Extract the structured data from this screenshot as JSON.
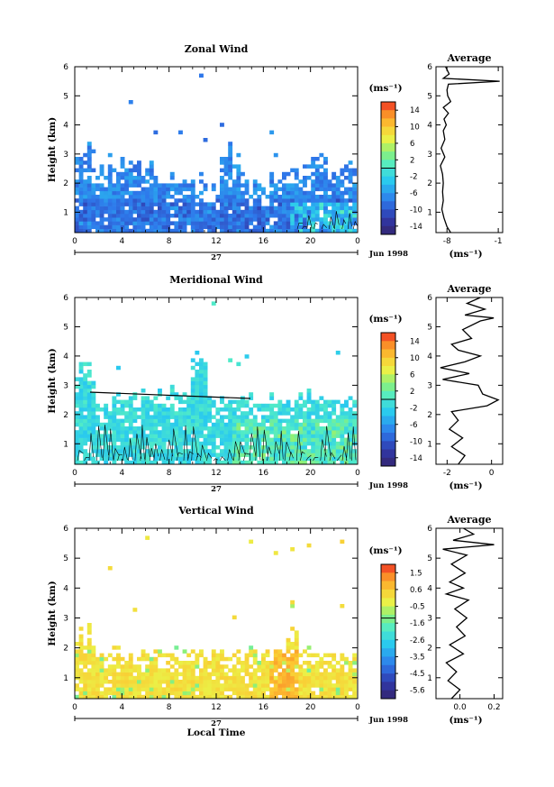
{
  "chart_data": [
    {
      "type": "heatmap",
      "title": "Zonal Wind",
      "xlabel": "",
      "ylabel": "Height (km)",
      "xticks": [
        "0",
        "4",
        "8",
        "12",
        "16",
        "20",
        "0"
      ],
      "xlim": [
        0,
        24
      ],
      "yticks": [
        "1",
        "2",
        "3",
        "4",
        "5",
        "6"
      ],
      "ylim": [
        0.3,
        6
      ],
      "date_day": "27",
      "date_label": "Jun 1998",
      "colorbar": {
        "unit": "(ms⁻¹)",
        "ticks": [
          "14",
          "10",
          "6",
          "2",
          "-2",
          "-6",
          "-10",
          "-14"
        ],
        "range": [
          -16,
          16
        ]
      },
      "average_profile": {
        "title": "Average",
        "xlabel": "(ms⁻¹)",
        "xticks": [
          "-8",
          "-1"
        ],
        "xlim": [
          -9.5,
          -0.4
        ],
        "points": [
          [
            -7.5,
            0.3
          ],
          [
            -8,
            0.5
          ],
          [
            -8.4,
            0.8
          ],
          [
            -8.7,
            1.1
          ],
          [
            -8.5,
            1.4
          ],
          [
            -8.6,
            1.7
          ],
          [
            -8.5,
            2
          ],
          [
            -8.6,
            2.3
          ],
          [
            -8.9,
            2.6
          ],
          [
            -8.3,
            2.9
          ],
          [
            -8.8,
            3.2
          ],
          [
            -8.3,
            3.5
          ],
          [
            -8.5,
            3.8
          ],
          [
            -8.1,
            4
          ],
          [
            -8.4,
            4.2
          ],
          [
            -7.8,
            4.4
          ],
          [
            -8.5,
            4.6
          ],
          [
            -7.5,
            4.8
          ],
          [
            -7.9,
            5
          ],
          [
            -8,
            5.2
          ],
          [
            -7.8,
            5.4
          ],
          [
            -0.8,
            5.5
          ],
          [
            -8.5,
            5.6
          ],
          [
            -7.7,
            5.75
          ],
          [
            -8.2,
            6
          ]
        ]
      }
    },
    {
      "type": "heatmap",
      "title": "Meridional Wind",
      "xlabel": "",
      "ylabel": "Height (km)",
      "xticks": [
        "0",
        "4",
        "8",
        "12",
        "16",
        "20",
        "0"
      ],
      "xlim": [
        0,
        24
      ],
      "yticks": [
        "1",
        "2",
        "3",
        "4",
        "5",
        "6"
      ],
      "ylim": [
        0.3,
        6
      ],
      "date_day": "27",
      "date_label": "Jun 1998",
      "colorbar": {
        "unit": "(ms⁻¹)",
        "ticks": [
          "14",
          "10",
          "6",
          "2",
          "-2",
          "-6",
          "-10",
          "-14"
        ],
        "range": [
          -16,
          16
        ]
      },
      "average_profile": {
        "title": "Average",
        "xlabel": "(ms⁻¹)",
        "xticks": [
          "-2",
          "0"
        ],
        "xlim": [
          -2.5,
          0.5
        ],
        "points": [
          [
            -1.5,
            0.3
          ],
          [
            -1.2,
            0.6
          ],
          [
            -1.8,
            0.9
          ],
          [
            -1.3,
            1.2
          ],
          [
            -1.9,
            1.5
          ],
          [
            -1.5,
            1.8
          ],
          [
            -1.8,
            2.1
          ],
          [
            -0.2,
            2.3
          ],
          [
            0.3,
            2.5
          ],
          [
            -0.4,
            2.7
          ],
          [
            -0.6,
            3
          ],
          [
            -2.2,
            3.2
          ],
          [
            -1,
            3.4
          ],
          [
            -2.3,
            3.6
          ],
          [
            -1.2,
            3.8
          ],
          [
            -0.5,
            4
          ],
          [
            -1.5,
            4.2
          ],
          [
            -1.8,
            4.4
          ],
          [
            -0.9,
            4.6
          ],
          [
            -1.3,
            4.9
          ],
          [
            -0.5,
            5.2
          ],
          [
            0.1,
            5.3
          ],
          [
            -1.2,
            5.4
          ],
          [
            -0.3,
            5.6
          ],
          [
            -1.1,
            5.8
          ],
          [
            -0.5,
            6
          ]
        ]
      }
    },
    {
      "type": "heatmap",
      "title": "Vertical Wind",
      "xlabel": "Local Time",
      "ylabel": "Height (km)",
      "xticks": [
        "0",
        "4",
        "8",
        "12",
        "16",
        "20",
        "0"
      ],
      "xlim": [
        0,
        24
      ],
      "yticks": [
        "1",
        "2",
        "3",
        "4",
        "5",
        "6"
      ],
      "ylim": [
        0.3,
        6
      ],
      "date_day": "27",
      "date_label": "Jun 1998",
      "colorbar": {
        "unit": "(ms⁻¹)",
        "ticks": [
          "1.5",
          "0.6",
          "-0.5",
          "-1.6",
          "-2.6",
          "-3.5",
          "-4.5",
          "-5.6"
        ],
        "range": [
          -6.2,
          2
        ]
      },
      "average_profile": {
        "title": "Average",
        "xlabel": "(ms⁻¹)",
        "xticks": [
          "0.0",
          "0.2"
        ],
        "xlim": [
          -0.14,
          0.25
        ],
        "points": [
          [
            -0.05,
            0.3
          ],
          [
            0,
            0.6
          ],
          [
            -0.07,
            0.9
          ],
          [
            -0.02,
            1.2
          ],
          [
            -0.08,
            1.5
          ],
          [
            0.02,
            1.8
          ],
          [
            -0.06,
            2.1
          ],
          [
            0.03,
            2.4
          ],
          [
            -0.02,
            2.7
          ],
          [
            0.04,
            3
          ],
          [
            -0.03,
            3.3
          ],
          [
            0.05,
            3.6
          ],
          [
            -0.08,
            3.8
          ],
          [
            0.02,
            4
          ],
          [
            -0.06,
            4.2
          ],
          [
            0.03,
            4.5
          ],
          [
            -0.05,
            4.8
          ],
          [
            0.04,
            5.1
          ],
          [
            -0.1,
            5.3
          ],
          [
            0.2,
            5.45
          ],
          [
            -0.04,
            5.6
          ],
          [
            0.08,
            5.8
          ],
          [
            0.02,
            6
          ]
        ]
      }
    }
  ]
}
